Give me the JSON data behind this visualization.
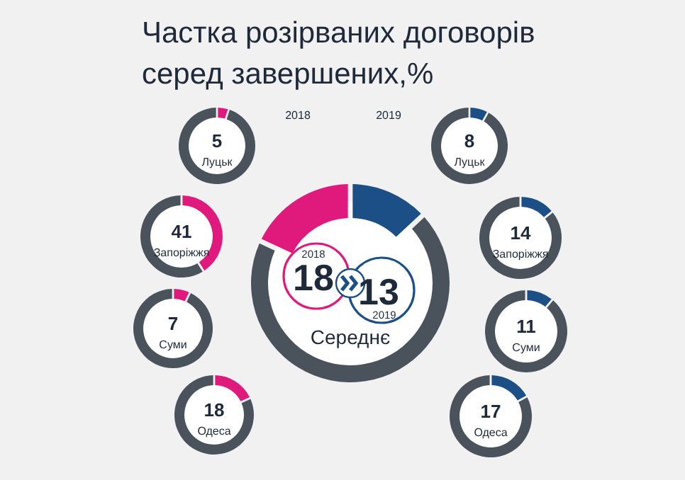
{
  "chart_data": [
    {
      "type": "donut",
      "title": "Частка розірваних договорів\nсеред  завершених,%",
      "categories": [
        null,
        null,
        null
      ],
      "values": [
        13,
        69,
        18
      ],
      "colors": [
        "#1b4f86",
        "#4a525c",
        "#e0197d"
      ],
      "annotations": [
        "Середнє",
        "2018",
        "18",
        "13",
        "2019"
      ]
    },
    {
      "type": "donut",
      "subtitle": "2018",
      "categories": [
        "Луцьк",
        null
      ],
      "values": [
        5,
        95
      ],
      "colors": [
        "#e0197d",
        "#4a525c"
      ],
      "value_labels": [
        "5",
        null
      ]
    },
    {
      "type": "donut",
      "categories": [
        "Запоріжжя",
        null
      ],
      "values": [
        41,
        59
      ],
      "colors": [
        "#e0197d",
        "#4a525c"
      ],
      "value_labels": [
        "41",
        null
      ]
    },
    {
      "type": "donut",
      "categories": [
        "Суми",
        null
      ],
      "values": [
        7,
        93
      ],
      "colors": [
        "#e0197d",
        "#4a525c"
      ],
      "value_labels": [
        "7",
        null
      ]
    },
    {
      "type": "donut",
      "categories": [
        "Одеса",
        null
      ],
      "values": [
        18,
        82
      ],
      "colors": [
        "#e0197d",
        "#4a525c"
      ],
      "value_labels": [
        "18",
        null
      ]
    },
    {
      "type": "donut",
      "subtitle": "2019",
      "categories": [
        "Луцьк",
        null
      ],
      "values": [
        8,
        92
      ],
      "colors": [
        "#1b4f86",
        "#4a525c"
      ],
      "value_labels": [
        "8",
        null
      ]
    },
    {
      "type": "donut",
      "categories": [
        "Запоріжжя",
        null
      ],
      "values": [
        14,
        86
      ],
      "colors": [
        "#1b4f86",
        "#4a525c"
      ],
      "value_labels": [
        "14",
        null
      ]
    },
    {
      "type": "donut",
      "categories": [
        "Суми",
        null
      ],
      "values": [
        11,
        89
      ],
      "colors": [
        "#1b4f86",
        "#4a525c"
      ],
      "value_labels": [
        "11",
        null
      ]
    },
    {
      "type": "donut",
      "categories": [
        "Одеса",
        null
      ],
      "values": [
        17,
        83
      ],
      "colors": [
        "#1b4f86",
        "#4a525c"
      ],
      "value_labels": [
        "17",
        null
      ]
    }
  ]
}
